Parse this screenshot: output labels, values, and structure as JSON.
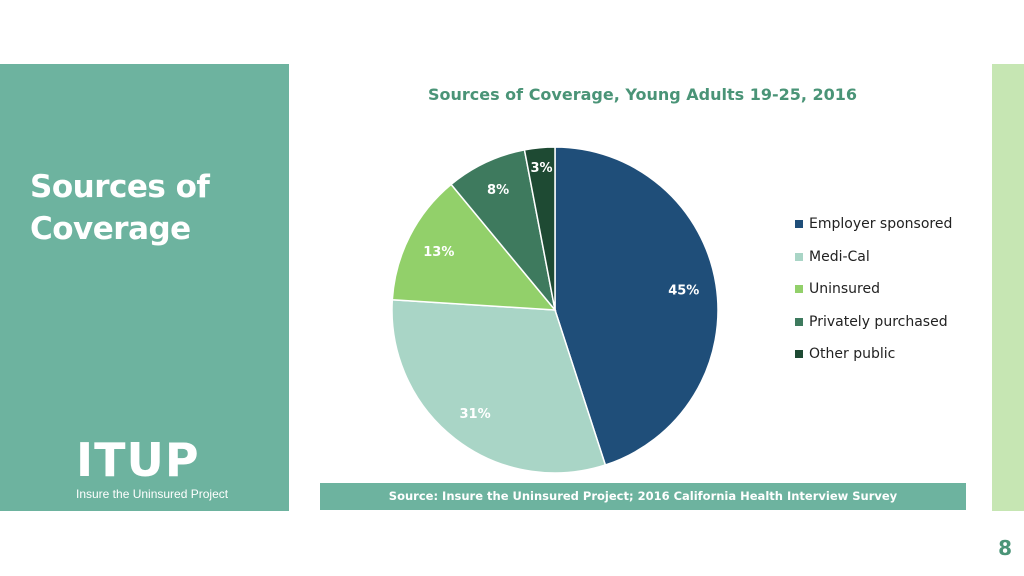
{
  "slide": {
    "title": "Sources of Coverage",
    "page_number": "8",
    "source": "Source: Insure the Uninsured Project; 2016 California Health Interview Survey",
    "logo": {
      "word": "ITUP",
      "subtitle": "Insure the Uninsured Project"
    }
  },
  "colors": {
    "left_panel": "#6db39f",
    "right_strip": "#c6e6b3",
    "title_green": "#4a9477"
  },
  "chart_data": {
    "type": "pie",
    "title": "Sources of Coverage,  Young Adults 19-25, 2016",
    "categories": [
      "Employer sponsored",
      "Medi-Cal",
      "Uninsured",
      "Privately purchased",
      "Other public"
    ],
    "values": [
      45,
      31,
      13,
      8,
      3
    ],
    "labels": [
      "45%",
      "31%",
      "13%",
      "8%",
      "3%"
    ],
    "colors": [
      "#1f4e79",
      "#a9d5c6",
      "#92d06a",
      "#3e7a5e",
      "#1e4a33"
    ],
    "legend_position": "right"
  }
}
